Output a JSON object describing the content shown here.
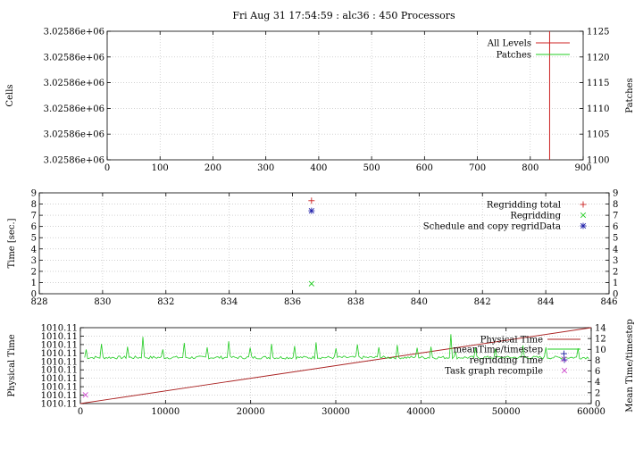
{
  "title": "Fri Aug 31 17:54:59 : alc36 : 450 Processors",
  "colors": {
    "red": "#cc2222",
    "green": "#22cc22",
    "blue": "#2222aa",
    "magenta": "#cc44cc",
    "darkred": "#aa2222"
  },
  "chart_data": [
    {
      "id": "top",
      "type": "line",
      "ylabel": "Cells",
      "y2label": "Patches",
      "xlim": [
        0,
        900
      ],
      "xticks": [
        "0",
        "100",
        "200",
        "300",
        "400",
        "500",
        "600",
        "700",
        "800",
        "900"
      ],
      "yticks": [
        "3.02586e+06",
        "3.02586e+06",
        "3.02586e+06",
        "3.02586e+06",
        "3.02586e+06",
        "3.02586e+06"
      ],
      "y2lim": [
        1100,
        1125
      ],
      "y2ticks": [
        "1100",
        "1105",
        "1110",
        "1115",
        "1120",
        "1125"
      ],
      "legend": [
        "All Levels",
        "Patches"
      ],
      "series": [
        {
          "name": "All Levels",
          "x": [
            836.6,
            836.6
          ],
          "y": [
            0,
            1
          ]
        }
      ],
      "grid": true,
      "legend_position": "top-right"
    },
    {
      "id": "middle",
      "type": "scatter",
      "ylabel": "Time [sec.]",
      "xlim": [
        828,
        846
      ],
      "xticks": [
        "828",
        "830",
        "832",
        "834",
        "836",
        "838",
        "840",
        "842",
        "844",
        "846"
      ],
      "ylim": [
        0,
        9
      ],
      "yticks": [
        "0",
        "1",
        "2",
        "3",
        "4",
        "5",
        "6",
        "7",
        "8",
        "9"
      ],
      "y2ticks": [
        "0",
        "1",
        "2",
        "3",
        "4",
        "5",
        "6",
        "7",
        "8",
        "9"
      ],
      "legend": [
        "Regridding total",
        "Regridding",
        "Schedule and copy regridData"
      ],
      "series": [
        {
          "name": "Regridding total",
          "marker": "+",
          "x": [
            836.6
          ],
          "y": [
            8.3
          ]
        },
        {
          "name": "Regridding",
          "marker": "x",
          "x": [
            836.6
          ],
          "y": [
            0.9
          ]
        },
        {
          "name": "Schedule and copy regridData",
          "marker": "*",
          "x": [
            836.6
          ],
          "y": [
            7.4
          ]
        }
      ],
      "grid": true,
      "legend_position": "top-right"
    },
    {
      "id": "bottom",
      "type": "line",
      "ylabel": "Physical Time",
      "y2label": "Mean Time/timestep",
      "xlim": [
        0,
        60000
      ],
      "xticks": [
        "0",
        "10000",
        "20000",
        "30000",
        "40000",
        "50000",
        "60000"
      ],
      "yticks": [
        "1010.11",
        "1010.11",
        "1010.11",
        "1010.11",
        "1010.11",
        "1010.11",
        "1010.11",
        "1010.11",
        "1010.11",
        "1010.11"
      ],
      "y2lim": [
        0,
        14
      ],
      "y2ticks": [
        "0",
        "2",
        "4",
        "6",
        "8",
        "10",
        "12",
        "14"
      ],
      "legend": [
        "Physical Time",
        "meanTime/timestep",
        "regridding Time",
        "Task graph recompile"
      ],
      "series": [
        {
          "name": "Physical Time",
          "x": [
            0,
            60000
          ],
          "y": [
            0,
            1
          ]
        },
        {
          "name": "meanTime/timestep",
          "x_range": [
            500,
            59800
          ],
          "baseline": 8.5,
          "spikes": [
            [
              700,
              10
            ],
            [
              2400,
              11
            ],
            [
              5500,
              10.5
            ],
            [
              7400,
              12.3
            ],
            [
              9700,
              10
            ],
            [
              12200,
              11.2
            ],
            [
              14900,
              10.4
            ],
            [
              17400,
              11.5
            ],
            [
              19900,
              10.3
            ],
            [
              22400,
              11
            ],
            [
              25100,
              10.6
            ],
            [
              27600,
              11.3
            ],
            [
              30100,
              10.2
            ],
            [
              32600,
              10.9
            ],
            [
              35100,
              10.4
            ],
            [
              37200,
              10.8
            ],
            [
              39600,
              10.3
            ],
            [
              41200,
              10.5
            ],
            [
              43600,
              12.8
            ],
            [
              44100,
              9.6
            ],
            [
              46400,
              10.3
            ],
            [
              48700,
              10.1
            ],
            [
              51900,
              10.7
            ],
            [
              54600,
              10.4
            ],
            [
              58400,
              10.2
            ]
          ]
        },
        {
          "name": "regridding Time",
          "marker": "+",
          "x": [
            56800
          ],
          "y": [
            9.2
          ]
        },
        {
          "name": "Task graph recompile",
          "marker": "x",
          "x": [
            600,
            56800
          ],
          "y": [
            1.6,
            8.2
          ]
        }
      ],
      "grid": true,
      "legend_position": "top-right"
    }
  ]
}
